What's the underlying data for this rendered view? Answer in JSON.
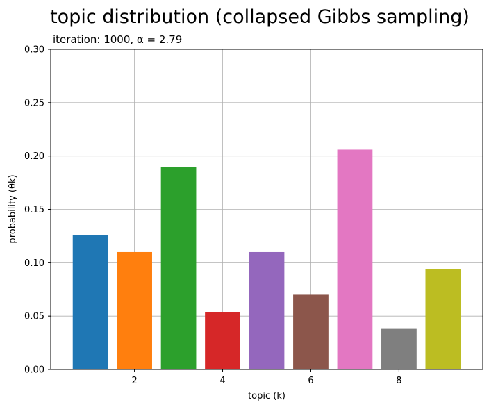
{
  "chart_data": {
    "type": "bar",
    "title": "topic distribution (collapsed Gibbs sampling)",
    "subtitle": "iteration: 1000, α = 2.79",
    "xlabel": "topic (k)",
    "ylabel": "probability (θk)",
    "x": [
      1,
      2,
      3,
      4,
      5,
      6,
      7,
      8,
      9
    ],
    "values": [
      0.126,
      0.11,
      0.19,
      0.054,
      0.11,
      0.07,
      0.206,
      0.038,
      0.094
    ],
    "colors": [
      "#1f77b4",
      "#ff7f0e",
      "#2ca02c",
      "#d62728",
      "#9467bd",
      "#8c564b",
      "#e377c2",
      "#7f7f7f",
      "#bcbd22"
    ],
    "xlim": [
      0.1,
      9.9
    ],
    "ylim": [
      0,
      0.3
    ],
    "xticks": [
      2,
      4,
      6,
      8
    ],
    "yticks": [
      0.0,
      0.05,
      0.1,
      0.15,
      0.2,
      0.25,
      0.3
    ],
    "xtick_labels": [
      "2",
      "4",
      "6",
      "8"
    ],
    "ytick_labels": [
      "0.00",
      "0.05",
      "0.10",
      "0.15",
      "0.20",
      "0.25",
      "0.30"
    ],
    "grid": true,
    "legend": "none"
  }
}
